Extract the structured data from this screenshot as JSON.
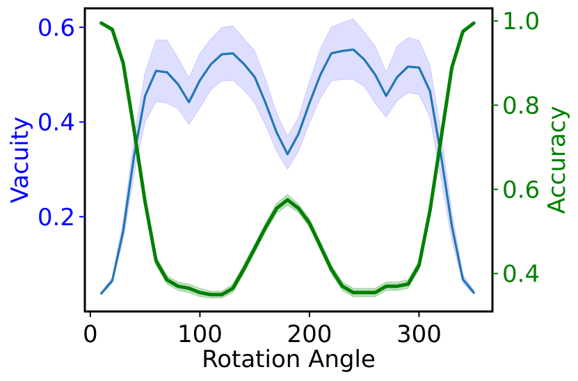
{
  "chart_data": {
    "type": "line",
    "title": "",
    "xlabel": "Rotation Angle",
    "ylabel_left": "Vacuity",
    "ylabel_right": "Accuracy",
    "xlim": [
      -5,
      367
    ],
    "ylim_left": [
      0.0,
      0.64
    ],
    "ylim_right": [
      0.31,
      1.03
    ],
    "xticks": [
      "0",
      "100",
      "200",
      "300"
    ],
    "yticks_left": [
      "0.2",
      "0.4",
      "0.6"
    ],
    "yticks_right": [
      "0.4",
      "0.6",
      "0.8",
      "1.0"
    ],
    "grid": false,
    "x": [
      10,
      20,
      30,
      40,
      50,
      60,
      70,
      80,
      90,
      100,
      110,
      120,
      130,
      140,
      150,
      160,
      170,
      180,
      190,
      200,
      210,
      220,
      230,
      240,
      250,
      260,
      270,
      280,
      290,
      300,
      310,
      320,
      330,
      340,
      350
    ],
    "series": [
      {
        "name": "",
        "axis": "left",
        "color": "#1f77b4",
        "band_color": "#0000ff",
        "values": [
          0.038,
          0.065,
          0.17,
          0.33,
          0.455,
          0.508,
          0.505,
          0.48,
          0.442,
          0.488,
          0.522,
          0.543,
          0.545,
          0.523,
          0.495,
          0.44,
          0.378,
          0.332,
          0.375,
          0.44,
          0.5,
          0.545,
          0.55,
          0.553,
          0.532,
          0.5,
          0.455,
          0.495,
          0.517,
          0.515,
          0.465,
          0.33,
          0.18,
          0.068,
          0.04
        ],
        "lower": [
          0.035,
          0.06,
          0.15,
          0.29,
          0.4,
          0.443,
          0.44,
          0.428,
          0.395,
          0.43,
          0.468,
          0.487,
          0.488,
          0.468,
          0.44,
          0.393,
          0.338,
          0.3,
          0.338,
          0.398,
          0.45,
          0.487,
          0.49,
          0.49,
          0.475,
          0.44,
          0.41,
          0.445,
          0.462,
          0.458,
          0.41,
          0.28,
          0.15,
          0.06,
          0.036
        ],
        "upper": [
          0.041,
          0.072,
          0.19,
          0.37,
          0.505,
          0.573,
          0.573,
          0.535,
          0.493,
          0.545,
          0.575,
          0.6,
          0.603,
          0.577,
          0.55,
          0.49,
          0.418,
          0.37,
          0.41,
          0.485,
          0.555,
          0.6,
          0.61,
          0.618,
          0.59,
          0.56,
          0.505,
          0.56,
          0.578,
          0.572,
          0.52,
          0.38,
          0.21,
          0.078,
          0.045
        ]
      },
      {
        "name": "",
        "axis": "right",
        "color": "#008000",
        "band_color": "#008000",
        "values": [
          0.995,
          0.98,
          0.9,
          0.74,
          0.57,
          0.43,
          0.385,
          0.37,
          0.365,
          0.355,
          0.35,
          0.35,
          0.365,
          0.41,
          0.46,
          0.51,
          0.555,
          0.575,
          0.555,
          0.52,
          0.465,
          0.41,
          0.37,
          0.355,
          0.355,
          0.355,
          0.37,
          0.37,
          0.375,
          0.42,
          0.55,
          0.72,
          0.89,
          0.975,
          0.995
        ],
        "lower": [
          0.993,
          0.975,
          0.895,
          0.73,
          0.56,
          0.42,
          0.375,
          0.36,
          0.355,
          0.345,
          0.342,
          0.342,
          0.355,
          0.4,
          0.45,
          0.5,
          0.543,
          0.562,
          0.545,
          0.51,
          0.455,
          0.4,
          0.36,
          0.345,
          0.345,
          0.345,
          0.36,
          0.36,
          0.365,
          0.41,
          0.54,
          0.71,
          0.88,
          0.97,
          0.993
        ],
        "upper": [
          0.997,
          0.985,
          0.905,
          0.75,
          0.58,
          0.44,
          0.395,
          0.38,
          0.375,
          0.365,
          0.358,
          0.358,
          0.375,
          0.42,
          0.47,
          0.52,
          0.567,
          0.588,
          0.565,
          0.53,
          0.475,
          0.42,
          0.38,
          0.365,
          0.365,
          0.365,
          0.38,
          0.38,
          0.385,
          0.43,
          0.56,
          0.73,
          0.9,
          0.98,
          0.997
        ]
      }
    ]
  }
}
